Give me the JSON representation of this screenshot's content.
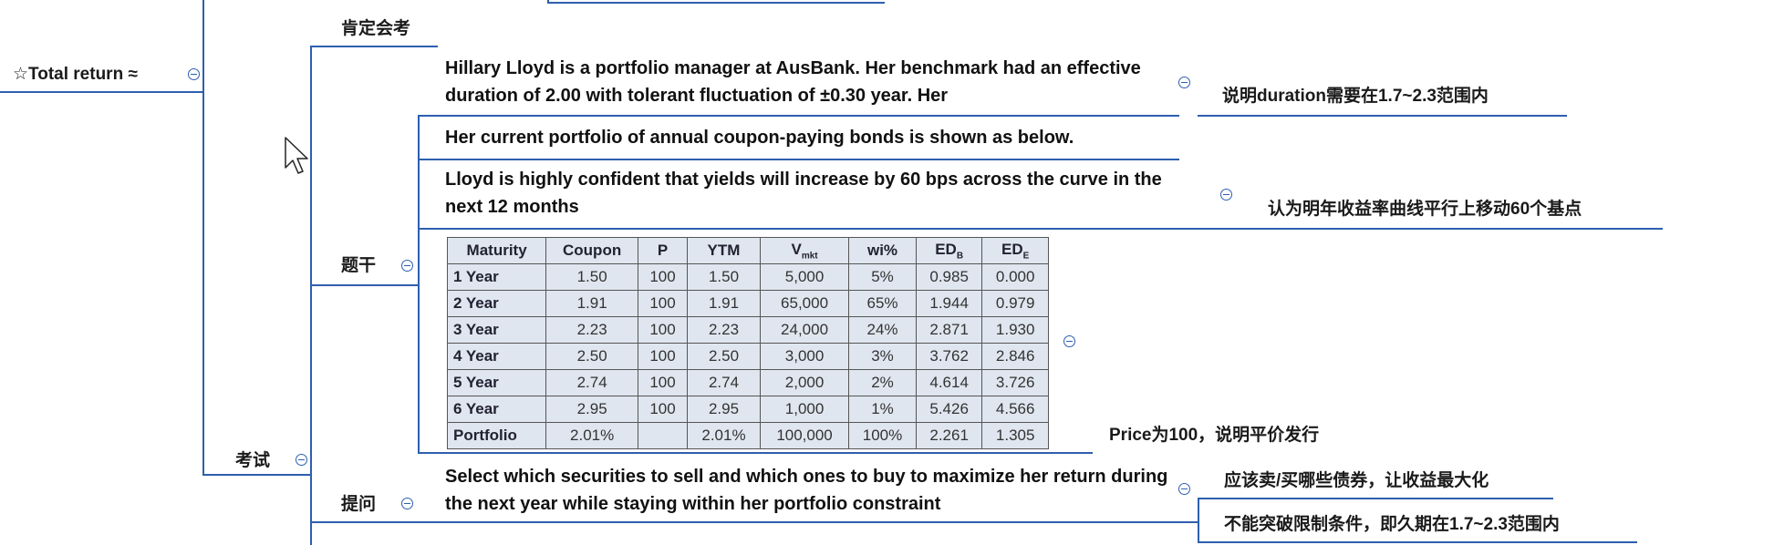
{
  "root": {
    "label": "☆Total return ≈"
  },
  "branches": {
    "kending": {
      "label": "肯定会考"
    },
    "kaoshi": {
      "label": "考试"
    },
    "tigan": {
      "label": "题干"
    },
    "tiwen": {
      "label": "提问"
    }
  },
  "stem": {
    "para1": "Hillary Lloyd is a portfolio manager at AusBank. Her benchmark had an effective duration of 2.00 with tolerant fluctuation of ±0.30 year. Her",
    "para1_note": "说明duration需要在1.7~2.3范围内",
    "para2": "Her current portfolio of annual coupon-paying bonds is shown as below.",
    "para3": "Lloyd is highly confident that yields will increase by 60 bps across the curve in the next 12 months",
    "para3_note": "认为明年收益率曲线平行上移动60个基点",
    "table_note": "Price为100，说明平价发行"
  },
  "bond_table": {
    "headers": [
      "Maturity",
      "Coupon",
      "P",
      "YTM",
      "V",
      "wi%",
      "ED",
      "ED"
    ],
    "header_subscripts": [
      "",
      "",
      "",
      "",
      "mkt",
      "",
      "B",
      "E"
    ],
    "rows": [
      [
        "1 Year",
        "1.50",
        "100",
        "1.50",
        "5,000",
        "5%",
        "0.985",
        "0.000"
      ],
      [
        "2 Year",
        "1.91",
        "100",
        "1.91",
        "65,000",
        "65%",
        "1.944",
        "0.979"
      ],
      [
        "3 Year",
        "2.23",
        "100",
        "2.23",
        "24,000",
        "24%",
        "2.871",
        "1.930"
      ],
      [
        "4 Year",
        "2.50",
        "100",
        "2.50",
        "3,000",
        "3%",
        "3.762",
        "2.846"
      ],
      [
        "5 Year",
        "2.74",
        "100",
        "2.74",
        "2,000",
        "2%",
        "4.614",
        "3.726"
      ],
      [
        "6 Year",
        "2.95",
        "100",
        "2.95",
        "1,000",
        "1%",
        "5.426",
        "4.566"
      ],
      [
        "Portfolio",
        "2.01%",
        "",
        "2.01%",
        "100,000",
        "100%",
        "2.261",
        "1.305"
      ]
    ]
  },
  "question": {
    "text": "Select which securities to sell and which ones to buy to maximize her return during the next year while staying within her portfolio constraint",
    "note1": "应该卖/买哪些债券，让收益最大化",
    "note2": "不能突破限制条件，即久期在1.7~2.3范围内"
  },
  "colors": {
    "connector": "#2d5faf",
    "table_bg": "#dfe6ef"
  },
  "icons": {
    "collapse": "minus-circle-icon",
    "cursor": "mouse-pointer-icon"
  }
}
